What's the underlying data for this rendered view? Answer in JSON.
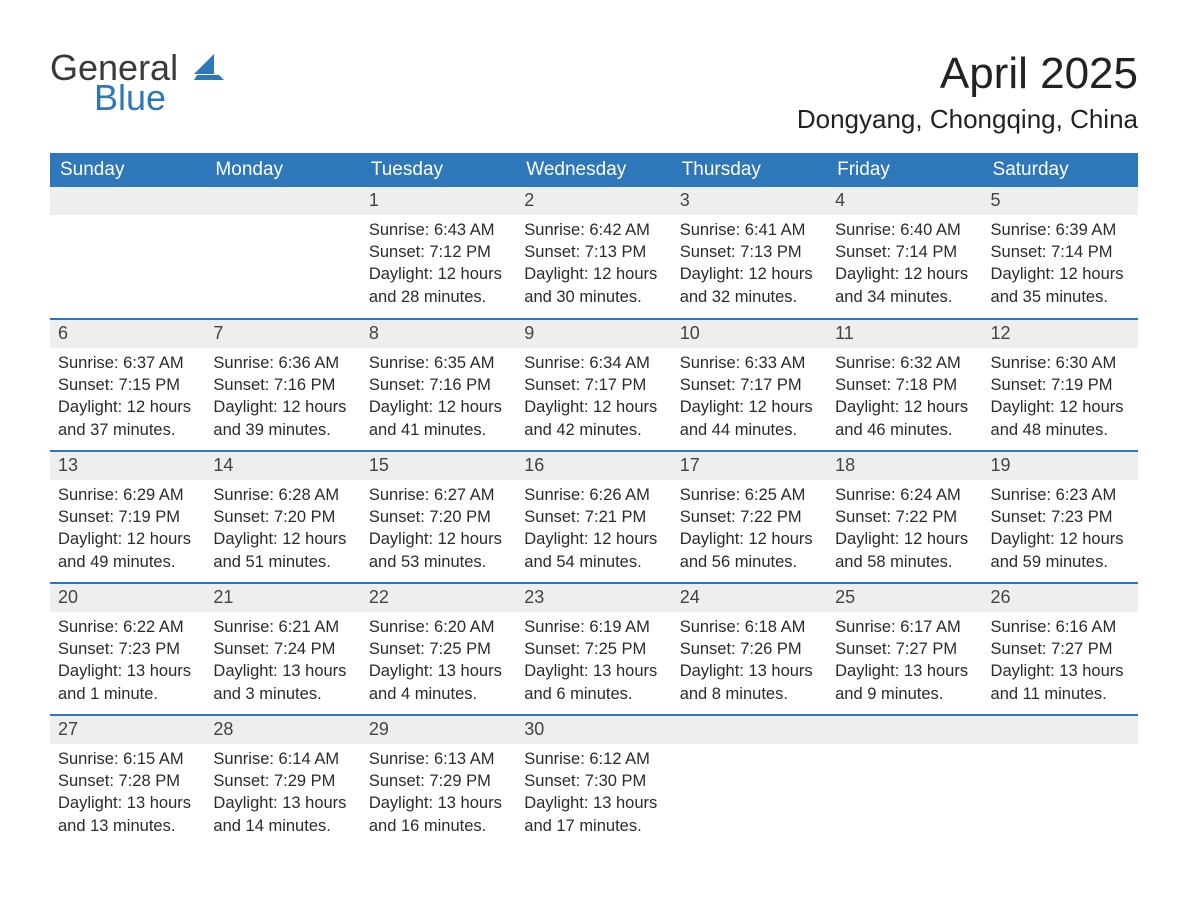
{
  "logo": {
    "general": "General",
    "blue": "Blue"
  },
  "title": "April 2025",
  "location": "Dongyang, Chongqing, China",
  "colors": {
    "header_bg": "#2f77bb",
    "header_fg": "#ffffff",
    "daynum_bg": "#eeeeee",
    "page_bg": "#ffffff",
    "text": "#2b2b2b",
    "rule": "#2f77bb"
  },
  "typography": {
    "title_fontsize": 44,
    "location_fontsize": 26,
    "header_fontsize": 19,
    "body_fontsize": 16.5
  },
  "weekdays": [
    "Sunday",
    "Monday",
    "Tuesday",
    "Wednesday",
    "Thursday",
    "Friday",
    "Saturday"
  ],
  "weeks": [
    [
      {
        "n": "",
        "sr": "",
        "ss": "",
        "dl": ""
      },
      {
        "n": "",
        "sr": "",
        "ss": "",
        "dl": ""
      },
      {
        "n": "1",
        "sr": "Sunrise: 6:43 AM",
        "ss": "Sunset: 7:12 PM",
        "dl": "Daylight: 12 hours and 28 minutes."
      },
      {
        "n": "2",
        "sr": "Sunrise: 6:42 AM",
        "ss": "Sunset: 7:13 PM",
        "dl": "Daylight: 12 hours and 30 minutes."
      },
      {
        "n": "3",
        "sr": "Sunrise: 6:41 AM",
        "ss": "Sunset: 7:13 PM",
        "dl": "Daylight: 12 hours and 32 minutes."
      },
      {
        "n": "4",
        "sr": "Sunrise: 6:40 AM",
        "ss": "Sunset: 7:14 PM",
        "dl": "Daylight: 12 hours and 34 minutes."
      },
      {
        "n": "5",
        "sr": "Sunrise: 6:39 AM",
        "ss": "Sunset: 7:14 PM",
        "dl": "Daylight: 12 hours and 35 minutes."
      }
    ],
    [
      {
        "n": "6",
        "sr": "Sunrise: 6:37 AM",
        "ss": "Sunset: 7:15 PM",
        "dl": "Daylight: 12 hours and 37 minutes."
      },
      {
        "n": "7",
        "sr": "Sunrise: 6:36 AM",
        "ss": "Sunset: 7:16 PM",
        "dl": "Daylight: 12 hours and 39 minutes."
      },
      {
        "n": "8",
        "sr": "Sunrise: 6:35 AM",
        "ss": "Sunset: 7:16 PM",
        "dl": "Daylight: 12 hours and 41 minutes."
      },
      {
        "n": "9",
        "sr": "Sunrise: 6:34 AM",
        "ss": "Sunset: 7:17 PM",
        "dl": "Daylight: 12 hours and 42 minutes."
      },
      {
        "n": "10",
        "sr": "Sunrise: 6:33 AM",
        "ss": "Sunset: 7:17 PM",
        "dl": "Daylight: 12 hours and 44 minutes."
      },
      {
        "n": "11",
        "sr": "Sunrise: 6:32 AM",
        "ss": "Sunset: 7:18 PM",
        "dl": "Daylight: 12 hours and 46 minutes."
      },
      {
        "n": "12",
        "sr": "Sunrise: 6:30 AM",
        "ss": "Sunset: 7:19 PM",
        "dl": "Daylight: 12 hours and 48 minutes."
      }
    ],
    [
      {
        "n": "13",
        "sr": "Sunrise: 6:29 AM",
        "ss": "Sunset: 7:19 PM",
        "dl": "Daylight: 12 hours and 49 minutes."
      },
      {
        "n": "14",
        "sr": "Sunrise: 6:28 AM",
        "ss": "Sunset: 7:20 PM",
        "dl": "Daylight: 12 hours and 51 minutes."
      },
      {
        "n": "15",
        "sr": "Sunrise: 6:27 AM",
        "ss": "Sunset: 7:20 PM",
        "dl": "Daylight: 12 hours and 53 minutes."
      },
      {
        "n": "16",
        "sr": "Sunrise: 6:26 AM",
        "ss": "Sunset: 7:21 PM",
        "dl": "Daylight: 12 hours and 54 minutes."
      },
      {
        "n": "17",
        "sr": "Sunrise: 6:25 AM",
        "ss": "Sunset: 7:22 PM",
        "dl": "Daylight: 12 hours and 56 minutes."
      },
      {
        "n": "18",
        "sr": "Sunrise: 6:24 AM",
        "ss": "Sunset: 7:22 PM",
        "dl": "Daylight: 12 hours and 58 minutes."
      },
      {
        "n": "19",
        "sr": "Sunrise: 6:23 AM",
        "ss": "Sunset: 7:23 PM",
        "dl": "Daylight: 12 hours and 59 minutes."
      }
    ],
    [
      {
        "n": "20",
        "sr": "Sunrise: 6:22 AM",
        "ss": "Sunset: 7:23 PM",
        "dl": "Daylight: 13 hours and 1 minute."
      },
      {
        "n": "21",
        "sr": "Sunrise: 6:21 AM",
        "ss": "Sunset: 7:24 PM",
        "dl": "Daylight: 13 hours and 3 minutes."
      },
      {
        "n": "22",
        "sr": "Sunrise: 6:20 AM",
        "ss": "Sunset: 7:25 PM",
        "dl": "Daylight: 13 hours and 4 minutes."
      },
      {
        "n": "23",
        "sr": "Sunrise: 6:19 AM",
        "ss": "Sunset: 7:25 PM",
        "dl": "Daylight: 13 hours and 6 minutes."
      },
      {
        "n": "24",
        "sr": "Sunrise: 6:18 AM",
        "ss": "Sunset: 7:26 PM",
        "dl": "Daylight: 13 hours and 8 minutes."
      },
      {
        "n": "25",
        "sr": "Sunrise: 6:17 AM",
        "ss": "Sunset: 7:27 PM",
        "dl": "Daylight: 13 hours and 9 minutes."
      },
      {
        "n": "26",
        "sr": "Sunrise: 6:16 AM",
        "ss": "Sunset: 7:27 PM",
        "dl": "Daylight: 13 hours and 11 minutes."
      }
    ],
    [
      {
        "n": "27",
        "sr": "Sunrise: 6:15 AM",
        "ss": "Sunset: 7:28 PM",
        "dl": "Daylight: 13 hours and 13 minutes."
      },
      {
        "n": "28",
        "sr": "Sunrise: 6:14 AM",
        "ss": "Sunset: 7:29 PM",
        "dl": "Daylight: 13 hours and 14 minutes."
      },
      {
        "n": "29",
        "sr": "Sunrise: 6:13 AM",
        "ss": "Sunset: 7:29 PM",
        "dl": "Daylight: 13 hours and 16 minutes."
      },
      {
        "n": "30",
        "sr": "Sunrise: 6:12 AM",
        "ss": "Sunset: 7:30 PM",
        "dl": "Daylight: 13 hours and 17 minutes."
      },
      {
        "n": "",
        "sr": "",
        "ss": "",
        "dl": ""
      },
      {
        "n": "",
        "sr": "",
        "ss": "",
        "dl": ""
      },
      {
        "n": "",
        "sr": "",
        "ss": "",
        "dl": ""
      }
    ]
  ]
}
